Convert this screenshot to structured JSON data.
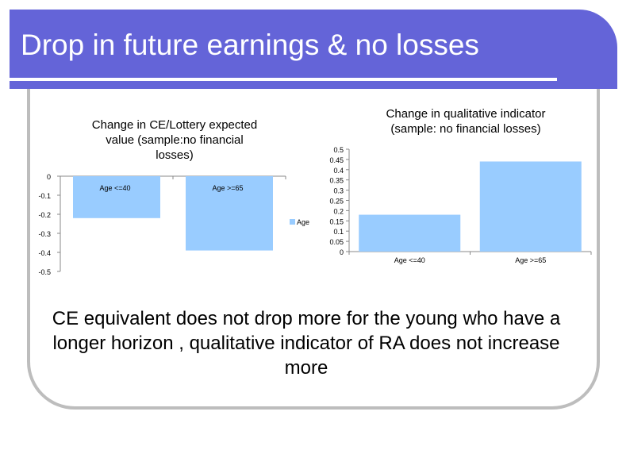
{
  "slide": {
    "title": "Drop in future earnings & no losses",
    "body": "CE equivalent does not drop more for the young who have a longer horizon , qualitative indicator of RA does not increase more"
  },
  "colors": {
    "title_band": "#6464D8",
    "bar": "#99CCFF",
    "frame": "#BDBDBD"
  },
  "chart_data": [
    {
      "type": "bar",
      "title": "Change in CE/Lottery expected value (sample:no financial losses)",
      "title_lines": [
        "Change in CE/Lottery expected",
        "value (sample:no financial",
        "losses)"
      ],
      "categories": [
        "Age <=40",
        "Age >=65"
      ],
      "series": [
        {
          "name": "Age",
          "values": [
            -0.22,
            -0.39
          ]
        }
      ],
      "yticks": [
        "0",
        "-0.1",
        "-0.2",
        "-0.3",
        "-0.4",
        "-0.5"
      ],
      "ylim": [
        -0.5,
        0
      ],
      "grid": false,
      "legend": "right"
    },
    {
      "type": "bar",
      "title": "Change in qualitative indicator (sample: no financial losses)",
      "title_lines": [
        "Change in qualitative indicator",
        "(sample: no financial losses)"
      ],
      "categories": [
        "Age <=40",
        "Age >=65"
      ],
      "series": [
        {
          "values": [
            0.18,
            0.44
          ]
        }
      ],
      "yticks": [
        "0.5",
        "0.45",
        "0.4",
        "0.35",
        "0.3",
        "0.25",
        "0.2",
        "0.15",
        "0.1",
        "0.05",
        "0"
      ],
      "ylim": [
        0,
        0.5
      ],
      "grid": false
    }
  ]
}
